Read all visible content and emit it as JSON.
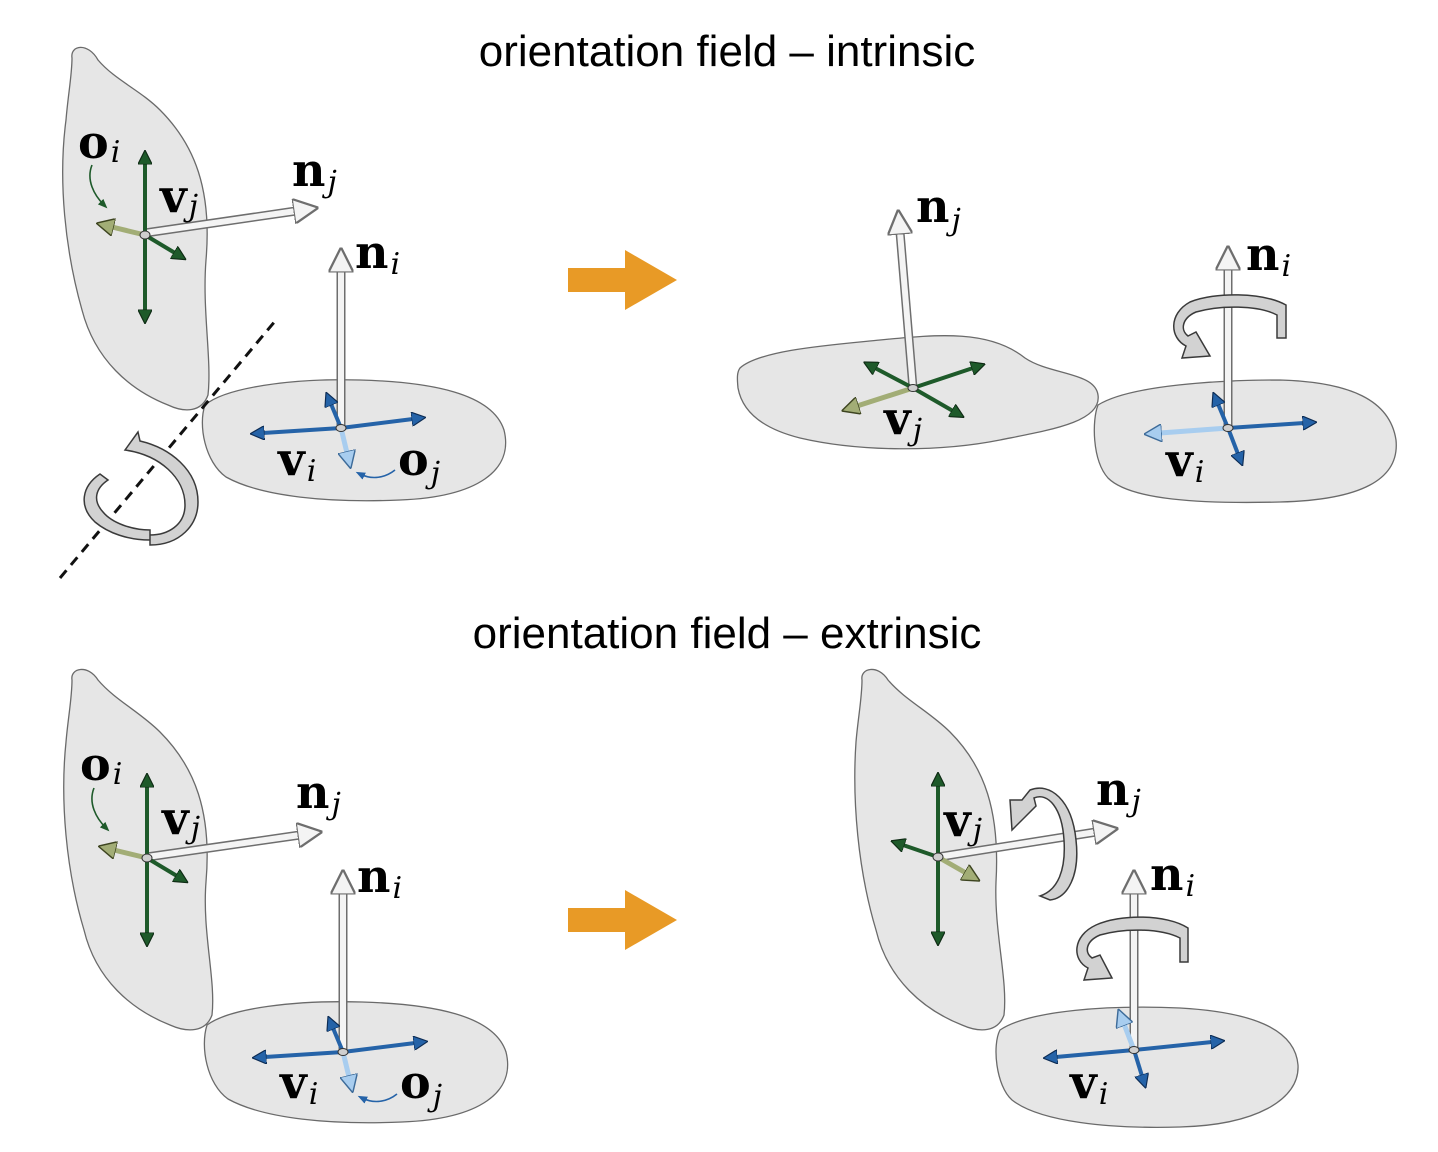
{
  "panels": [
    {
      "title": "orientation field – intrinsic",
      "labels": {
        "o_i": {
          "base": "o",
          "sub": "i"
        },
        "v_j": {
          "base": "v",
          "sub": "j"
        },
        "n_j": {
          "base": "n",
          "sub": "j"
        },
        "n_i": {
          "base": "n",
          "sub": "i"
        },
        "v_i": {
          "base": "v",
          "sub": "i"
        },
        "o_j": {
          "base": "o",
          "sub": "j"
        },
        "n_j_after": {
          "base": "n",
          "sub": "j"
        },
        "n_i_after": {
          "base": "n",
          "sub": "i"
        },
        "v_j_after": {
          "base": "v",
          "sub": "j"
        },
        "v_i_after": {
          "base": "v",
          "sub": "i"
        }
      }
    },
    {
      "title": "orientation field – extrinsic",
      "labels": {
        "o_i": {
          "base": "o",
          "sub": "i"
        },
        "v_j": {
          "base": "v",
          "sub": "j"
        },
        "n_j": {
          "base": "n",
          "sub": "j"
        },
        "n_i": {
          "base": "n",
          "sub": "i"
        },
        "v_i": {
          "base": "v",
          "sub": "i"
        },
        "o_j": {
          "base": "o",
          "sub": "j"
        },
        "v_j_after": {
          "base": "v",
          "sub": "j"
        },
        "n_j_after": {
          "base": "n",
          "sub": "j"
        },
        "n_i_after": {
          "base": "n",
          "sub": "i"
        },
        "v_i_after": {
          "base": "v",
          "sub": "i"
        }
      }
    }
  ],
  "colors": {
    "surface": "#e6e6e6",
    "surface_edge": "#6a6a6a",
    "green_dark": "#1e5a2a",
    "green_light": "#a2ad76",
    "blue_dark": "#2563a8",
    "blue_light": "#a8cdef",
    "normal_arrow": "#f4f4f4",
    "transition_arrow": "#e89a26",
    "rotation_arrow": "#d2d2d2"
  },
  "icons": [
    "transition-arrow-icon",
    "rotation-arrow-icon",
    "normal-vector-icon",
    "cross-field-icon",
    "rotation-axis-icon"
  ]
}
